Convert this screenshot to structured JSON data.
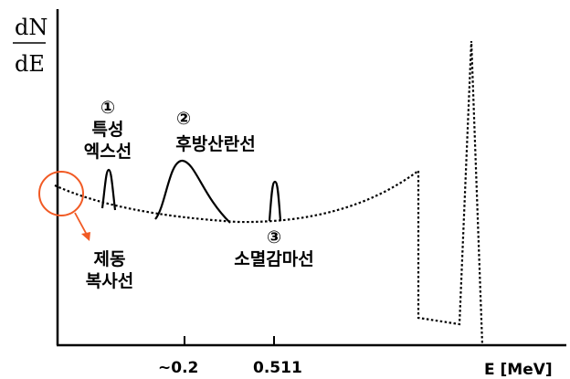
{
  "axis": {
    "y_label_top": "dN",
    "y_label_bottom": "dE",
    "x_label": "E [MeV]",
    "x_ticks": [
      "~0.2",
      "0.511"
    ]
  },
  "peaks": {
    "characteristic_xray": {
      "number": "①",
      "line1": "특성",
      "line2": "엑스선"
    },
    "backscatter": {
      "number": "②",
      "line1": "후방산란선"
    },
    "annihilation": {
      "number": "③",
      "line1": "소멸감마선"
    }
  },
  "bremsstrahlung": {
    "line1": "제동",
    "line2": "복사선"
  },
  "colors": {
    "axis": "#000000",
    "curve": "#000000",
    "highlight": "#f15a24"
  }
}
